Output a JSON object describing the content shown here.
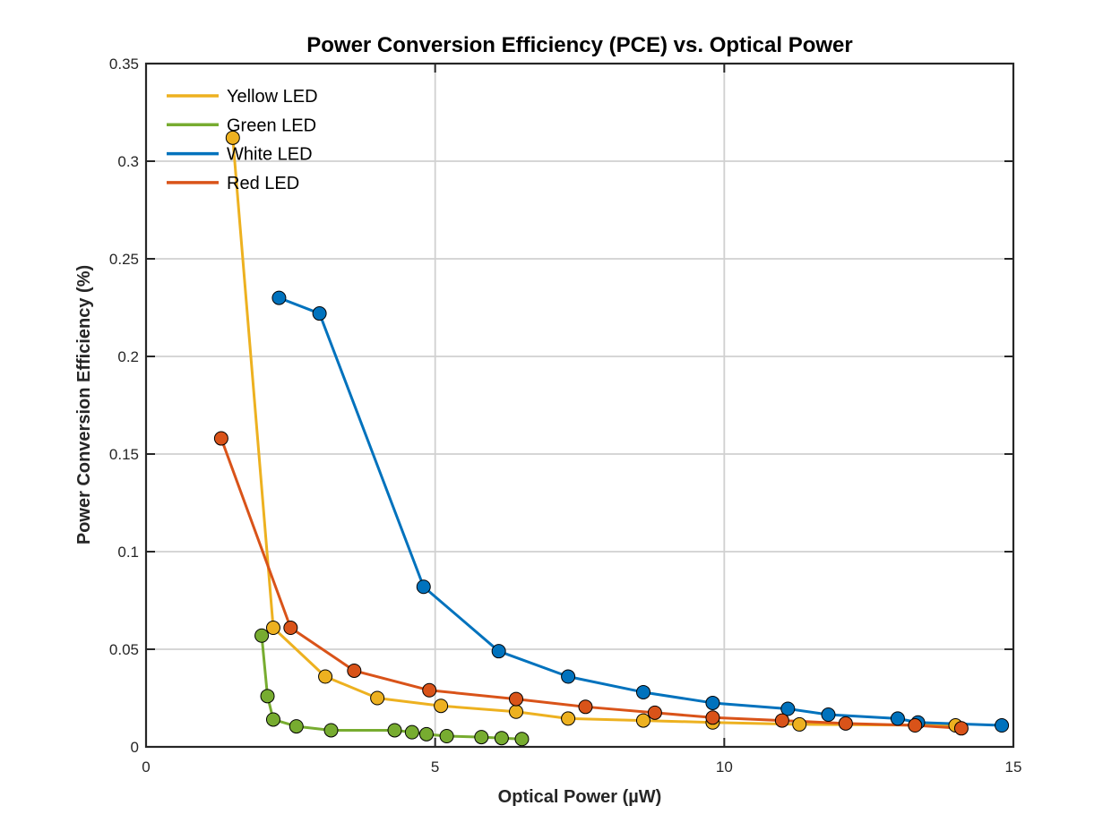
{
  "chart_data": {
    "type": "line",
    "title": "Power Conversion Efficiency (PCE) vs. Optical Power",
    "xlabel": "Optical Power (µW)",
    "ylabel": "Power Conversion Efficiency (%)",
    "xlim": [
      0,
      15
    ],
    "ylim": [
      0,
      0.35
    ],
    "xticks": [
      0,
      5,
      10,
      15
    ],
    "xtick_labels": [
      "0",
      "5",
      "10",
      "15"
    ],
    "yticks": [
      0,
      0.05,
      0.1,
      0.15,
      0.2,
      0.25,
      0.3,
      0.35
    ],
    "ytick_labels": [
      "0",
      "0.05",
      "0.1",
      "0.15",
      "0.2",
      "0.25",
      "0.3",
      "0.35"
    ],
    "grid": true,
    "legend_position": "top-left",
    "series": [
      {
        "name": "Yellow LED",
        "color": "#EDB120",
        "x": [
          1.5,
          2.2,
          3.1,
          4.0,
          5.1,
          6.4,
          7.3,
          8.6,
          9.8,
          11.3,
          14.0
        ],
        "y": [
          0.312,
          0.061,
          0.036,
          0.025,
          0.021,
          0.018,
          0.0145,
          0.0135,
          0.0125,
          0.0115,
          0.011
        ]
      },
      {
        "name": "Green LED",
        "color": "#77AC30",
        "x": [
          2.0,
          2.1,
          2.2,
          2.6,
          3.2,
          4.3,
          4.6,
          4.85,
          5.2,
          5.8,
          6.15,
          6.5
        ],
        "y": [
          0.057,
          0.026,
          0.014,
          0.0105,
          0.0085,
          0.0085,
          0.0075,
          0.0065,
          0.0055,
          0.005,
          0.0045,
          0.004
        ]
      },
      {
        "name": "White LED",
        "color": "#0072BD",
        "x": [
          2.3,
          3.0,
          4.8,
          6.1,
          7.3,
          8.6,
          9.8,
          11.1,
          11.8,
          13.0,
          13.35,
          14.8
        ],
        "y": [
          0.23,
          0.222,
          0.082,
          0.049,
          0.036,
          0.028,
          0.0225,
          0.0195,
          0.0165,
          0.0145,
          0.0125,
          0.011
        ]
      },
      {
        "name": "Red LED",
        "color": "#D95319",
        "x": [
          1.3,
          2.5,
          3.6,
          4.9,
          6.4,
          7.6,
          8.8,
          9.8,
          11.0,
          12.1,
          13.3,
          14.1
        ],
        "y": [
          0.158,
          0.061,
          0.039,
          0.029,
          0.0245,
          0.0205,
          0.0175,
          0.015,
          0.0135,
          0.012,
          0.011,
          0.0095
        ]
      }
    ]
  }
}
